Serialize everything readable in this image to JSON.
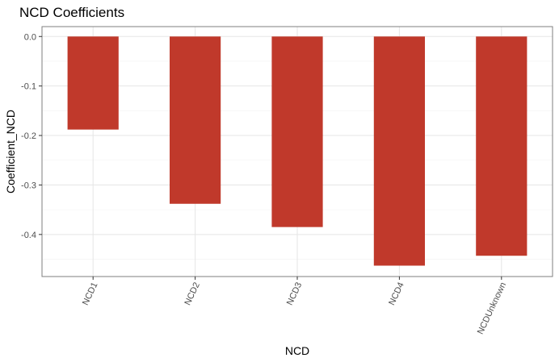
{
  "chart_data": {
    "type": "bar",
    "title": "NCD Coefficients",
    "xlabel": "NCD",
    "ylabel": "Coefficient_NCD",
    "categories": [
      "NCD1",
      "NCD2",
      "NCD3",
      "NCD4",
      "NCDUnknown"
    ],
    "values": [
      -0.188,
      -0.338,
      -0.385,
      -0.463,
      -0.443
    ],
    "ylim": [
      -0.485,
      0.02
    ],
    "yticks": [
      0.0,
      -0.1,
      -0.2,
      -0.3,
      -0.4
    ],
    "ytick_labels": [
      "0.0",
      "-0.1",
      "-0.2",
      "-0.3",
      "-0.4"
    ],
    "bar_color": "#c0392b",
    "grid": true,
    "legend": "none"
  }
}
